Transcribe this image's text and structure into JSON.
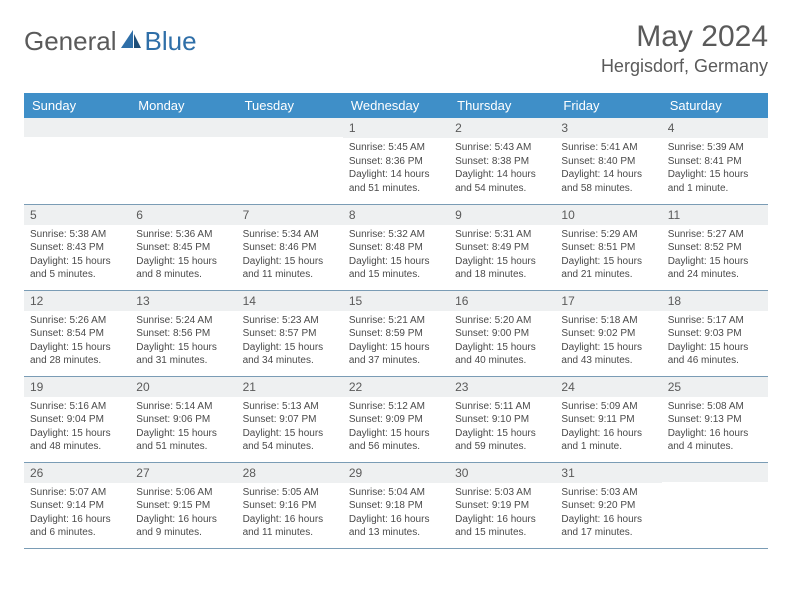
{
  "brand": {
    "part1": "General",
    "part2": "Blue"
  },
  "title": "May 2024",
  "location": "Hergisdorf, Germany",
  "colors": {
    "header_bg": "#3f8fc8",
    "header_text": "#ffffff",
    "daynum_bg": "#eef0f1",
    "text": "#5a5a5a",
    "border": "#7a9cb5",
    "logo_accent": "#2f6fa8"
  },
  "day_labels": [
    "Sunday",
    "Monday",
    "Tuesday",
    "Wednesday",
    "Thursday",
    "Friday",
    "Saturday"
  ],
  "weeks": [
    [
      null,
      null,
      null,
      {
        "n": "1",
        "sr": "5:45 AM",
        "ss": "8:36 PM",
        "dl": "14 hours and 51 minutes."
      },
      {
        "n": "2",
        "sr": "5:43 AM",
        "ss": "8:38 PM",
        "dl": "14 hours and 54 minutes."
      },
      {
        "n": "3",
        "sr": "5:41 AM",
        "ss": "8:40 PM",
        "dl": "14 hours and 58 minutes."
      },
      {
        "n": "4",
        "sr": "5:39 AM",
        "ss": "8:41 PM",
        "dl": "15 hours and 1 minute."
      }
    ],
    [
      {
        "n": "5",
        "sr": "5:38 AM",
        "ss": "8:43 PM",
        "dl": "15 hours and 5 minutes."
      },
      {
        "n": "6",
        "sr": "5:36 AM",
        "ss": "8:45 PM",
        "dl": "15 hours and 8 minutes."
      },
      {
        "n": "7",
        "sr": "5:34 AM",
        "ss": "8:46 PM",
        "dl": "15 hours and 11 minutes."
      },
      {
        "n": "8",
        "sr": "5:32 AM",
        "ss": "8:48 PM",
        "dl": "15 hours and 15 minutes."
      },
      {
        "n": "9",
        "sr": "5:31 AM",
        "ss": "8:49 PM",
        "dl": "15 hours and 18 minutes."
      },
      {
        "n": "10",
        "sr": "5:29 AM",
        "ss": "8:51 PM",
        "dl": "15 hours and 21 minutes."
      },
      {
        "n": "11",
        "sr": "5:27 AM",
        "ss": "8:52 PM",
        "dl": "15 hours and 24 minutes."
      }
    ],
    [
      {
        "n": "12",
        "sr": "5:26 AM",
        "ss": "8:54 PM",
        "dl": "15 hours and 28 minutes."
      },
      {
        "n": "13",
        "sr": "5:24 AM",
        "ss": "8:56 PM",
        "dl": "15 hours and 31 minutes."
      },
      {
        "n": "14",
        "sr": "5:23 AM",
        "ss": "8:57 PM",
        "dl": "15 hours and 34 minutes."
      },
      {
        "n": "15",
        "sr": "5:21 AM",
        "ss": "8:59 PM",
        "dl": "15 hours and 37 minutes."
      },
      {
        "n": "16",
        "sr": "5:20 AM",
        "ss": "9:00 PM",
        "dl": "15 hours and 40 minutes."
      },
      {
        "n": "17",
        "sr": "5:18 AM",
        "ss": "9:02 PM",
        "dl": "15 hours and 43 minutes."
      },
      {
        "n": "18",
        "sr": "5:17 AM",
        "ss": "9:03 PM",
        "dl": "15 hours and 46 minutes."
      }
    ],
    [
      {
        "n": "19",
        "sr": "5:16 AM",
        "ss": "9:04 PM",
        "dl": "15 hours and 48 minutes."
      },
      {
        "n": "20",
        "sr": "5:14 AM",
        "ss": "9:06 PM",
        "dl": "15 hours and 51 minutes."
      },
      {
        "n": "21",
        "sr": "5:13 AM",
        "ss": "9:07 PM",
        "dl": "15 hours and 54 minutes."
      },
      {
        "n": "22",
        "sr": "5:12 AM",
        "ss": "9:09 PM",
        "dl": "15 hours and 56 minutes."
      },
      {
        "n": "23",
        "sr": "5:11 AM",
        "ss": "9:10 PM",
        "dl": "15 hours and 59 minutes."
      },
      {
        "n": "24",
        "sr": "5:09 AM",
        "ss": "9:11 PM",
        "dl": "16 hours and 1 minute."
      },
      {
        "n": "25",
        "sr": "5:08 AM",
        "ss": "9:13 PM",
        "dl": "16 hours and 4 minutes."
      }
    ],
    [
      {
        "n": "26",
        "sr": "5:07 AM",
        "ss": "9:14 PM",
        "dl": "16 hours and 6 minutes."
      },
      {
        "n": "27",
        "sr": "5:06 AM",
        "ss": "9:15 PM",
        "dl": "16 hours and 9 minutes."
      },
      {
        "n": "28",
        "sr": "5:05 AM",
        "ss": "9:16 PM",
        "dl": "16 hours and 11 minutes."
      },
      {
        "n": "29",
        "sr": "5:04 AM",
        "ss": "9:18 PM",
        "dl": "16 hours and 13 minutes."
      },
      {
        "n": "30",
        "sr": "5:03 AM",
        "ss": "9:19 PM",
        "dl": "16 hours and 15 minutes."
      },
      {
        "n": "31",
        "sr": "5:03 AM",
        "ss": "9:20 PM",
        "dl": "16 hours and 17 minutes."
      },
      null
    ]
  ],
  "labels": {
    "sunrise": "Sunrise: ",
    "sunset": "Sunset: ",
    "daylight": "Daylight: "
  }
}
